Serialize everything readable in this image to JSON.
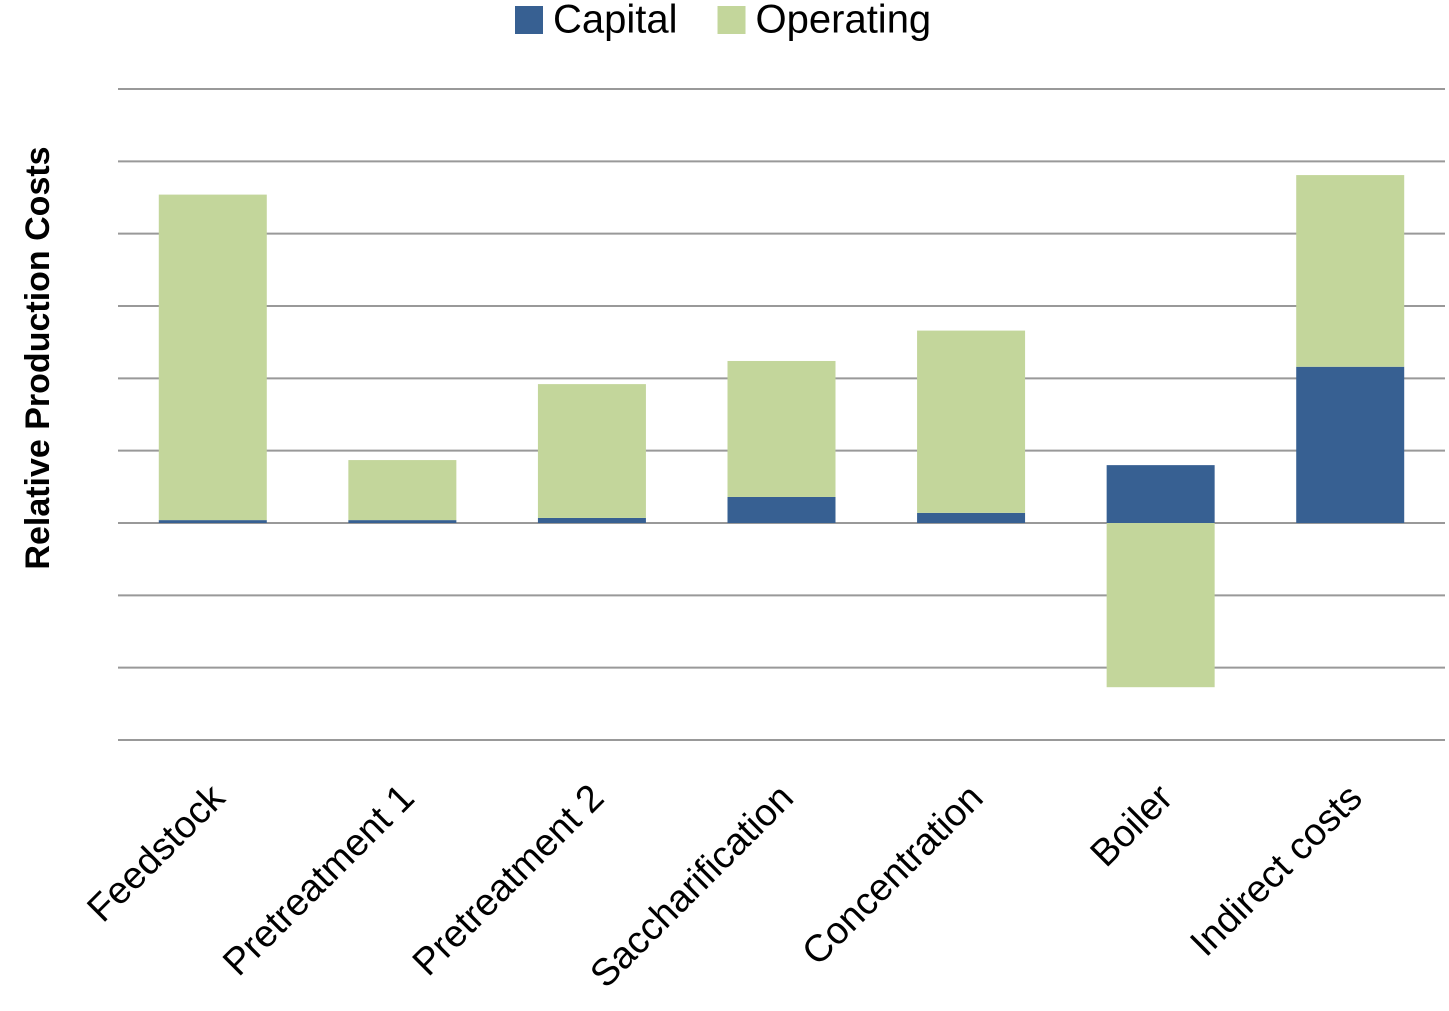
{
  "chart_data": {
    "type": "stacked_bar",
    "y_label": "Relative Production Costs",
    "categories": [
      "Feedstock",
      "Pretreatment 1",
      "Pretreatment 2",
      "Saccharification",
      "Concentration",
      "Boiler",
      "Indirect costs"
    ],
    "series": [
      {
        "name": "Capital",
        "color": "#376092",
        "values": [
          0.04,
          0.04,
          0.07,
          0.36,
          0.14,
          0.8,
          2.16
        ]
      },
      {
        "name": "Operating",
        "color": "#c3d69b",
        "values": [
          4.5,
          0.83,
          1.85,
          1.88,
          2.52,
          -2.27,
          2.65
        ]
      }
    ],
    "ylim": [
      -3,
      6
    ],
    "yticks": [
      -3,
      -2,
      -1,
      0,
      1,
      2,
      3,
      4,
      5,
      6
    ],
    "grid": true,
    "legend": "top"
  }
}
